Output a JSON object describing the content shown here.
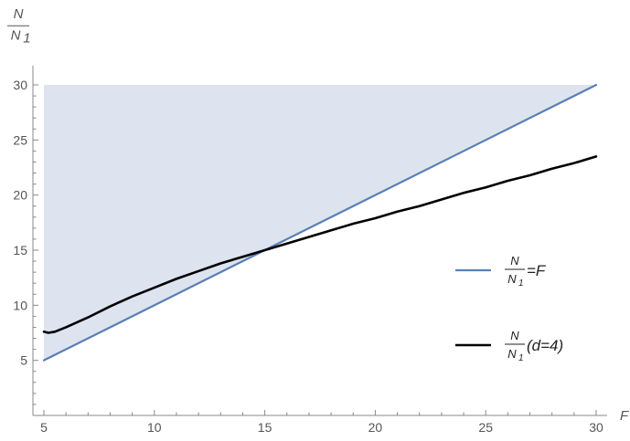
{
  "chart_data": {
    "type": "line",
    "xlabel": "F",
    "ylabel": {
      "numerator": "N",
      "denominator": "N",
      "subscript": "1"
    },
    "xlim": [
      5,
      30
    ],
    "ylim": [
      0,
      30
    ],
    "x_ticks": [
      5,
      10,
      15,
      20,
      25,
      30
    ],
    "y_ticks": [
      5,
      10,
      15,
      20,
      25,
      30
    ],
    "shaded_region": {
      "between": "line N/N1 = F and y = 30",
      "x_range": [
        5,
        30
      ],
      "color": "#dde3ef"
    },
    "series": [
      {
        "label": {
          "numerator": "N",
          "denominator": "N",
          "subscript": "1",
          "suffix": "=F"
        },
        "color": "#5b7fb5",
        "x": [
          5,
          30
        ],
        "y": [
          5,
          30
        ]
      },
      {
        "label": {
          "numerator": "N",
          "denominator": "N",
          "subscript": "1",
          "suffix": " (d=4)"
        },
        "color": "#000000",
        "x": [
          5,
          5.2,
          5.5,
          6,
          7,
          8,
          9,
          10,
          11,
          12,
          13,
          14,
          15,
          16,
          17,
          18,
          19,
          20,
          21,
          22,
          23,
          24,
          25,
          26,
          27,
          28,
          29,
          30
        ],
        "y": [
          7.6,
          7.5,
          7.6,
          8.0,
          8.9,
          9.9,
          10.8,
          11.6,
          12.4,
          13.1,
          13.8,
          14.4,
          15.0,
          15.6,
          16.2,
          16.8,
          17.4,
          17.9,
          18.5,
          19.0,
          19.6,
          20.2,
          20.7,
          21.3,
          21.8,
          22.4,
          22.9,
          23.5
        ]
      }
    ]
  }
}
